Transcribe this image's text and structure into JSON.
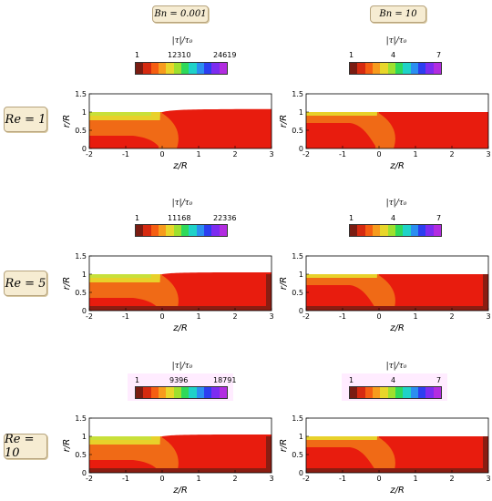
{
  "columns": [
    {
      "label": "Bn = 0.001"
    },
    {
      "label": "Bn = 10"
    }
  ],
  "rows": [
    {
      "label": "Re = 1"
    },
    {
      "label": "Re = 5"
    },
    {
      "label": "Re = 10"
    }
  ],
  "colorbar": {
    "title": "|τ|/τ₀",
    "colors": [
      "#7a1c12",
      "#d62a10",
      "#f55e12",
      "#f79b1d",
      "#e8d62a",
      "#9ee02e",
      "#2ed95a",
      "#1fd2c8",
      "#2b8ef0",
      "#2c3ef0",
      "#7c2cf0",
      "#b22ce0"
    ],
    "rows": [
      {
        "left": {
          "ticks": [
            "1",
            "12310",
            "24619"
          ]
        },
        "right": {
          "ticks": [
            "1",
            "4",
            "7"
          ]
        }
      },
      {
        "left": {
          "ticks": [
            "1",
            "11168",
            "22336"
          ]
        },
        "right": {
          "ticks": [
            "1",
            "4",
            "7"
          ]
        }
      },
      {
        "left": {
          "ticks": [
            "1",
            "9396",
            "18791"
          ]
        },
        "right": {
          "ticks": [
            "1",
            "4",
            "7"
          ]
        }
      }
    ]
  },
  "axes": {
    "xlabel": "z/R",
    "ylabel": "r/R",
    "xticks": [
      "-2",
      "-1",
      "0",
      "1",
      "2",
      "3"
    ],
    "yticks": [
      "0",
      "0.5",
      "1",
      "1.5"
    ]
  }
}
